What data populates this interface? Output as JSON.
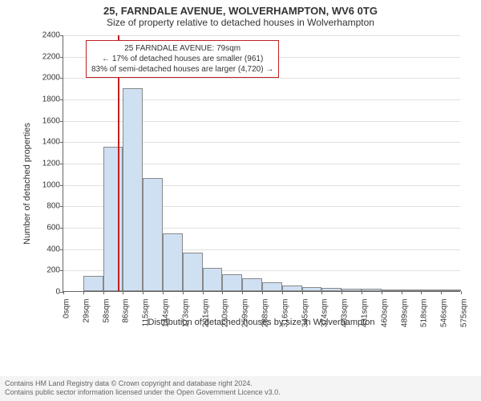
{
  "titles": {
    "line1": "25, FARNDALE AVENUE, WOLVERHAMPTON, WV6 0TG",
    "line2": "Size of property relative to detached houses in Wolverhampton"
  },
  "chart": {
    "type": "histogram",
    "ylabel": "Number of detached properties",
    "xlabel": "Distribution of detached houses by size in Wolverhampton",
    "ylim": [
      0,
      2400
    ],
    "ytick_step": 200,
    "xticks": [
      "0sqm",
      "29sqm",
      "58sqm",
      "86sqm",
      "115sqm",
      "144sqm",
      "173sqm",
      "201sqm",
      "230sqm",
      "259sqm",
      "288sqm",
      "316sqm",
      "345sqm",
      "374sqm",
      "403sqm",
      "431sqm",
      "460sqm",
      "489sqm",
      "518sqm",
      "546sqm",
      "575sqm"
    ],
    "bars": [
      0,
      140,
      1350,
      1900,
      1060,
      540,
      360,
      220,
      160,
      120,
      80,
      50,
      40,
      30,
      20,
      25,
      10,
      10,
      5,
      5
    ],
    "bar_fill": "#cfe0f3",
    "bar_border": "#888888",
    "grid_color": "#e0e0e0",
    "background": "#ffffff",
    "marker": {
      "x_fraction_of_range": 0.137,
      "color": "#c02020"
    },
    "annotation": {
      "line1": "25 FARNDALE AVENUE: 79sqm",
      "line2": "← 17% of detached houses are smaller (961)",
      "line3": "83% of semi-detached houses are larger (4,720) →",
      "border_color": "#c02020"
    }
  },
  "footer": {
    "line1": "Contains HM Land Registry data © Crown copyright and database right 2024.",
    "line2": "Contains public sector information licensed under the Open Government Licence v3.0."
  }
}
